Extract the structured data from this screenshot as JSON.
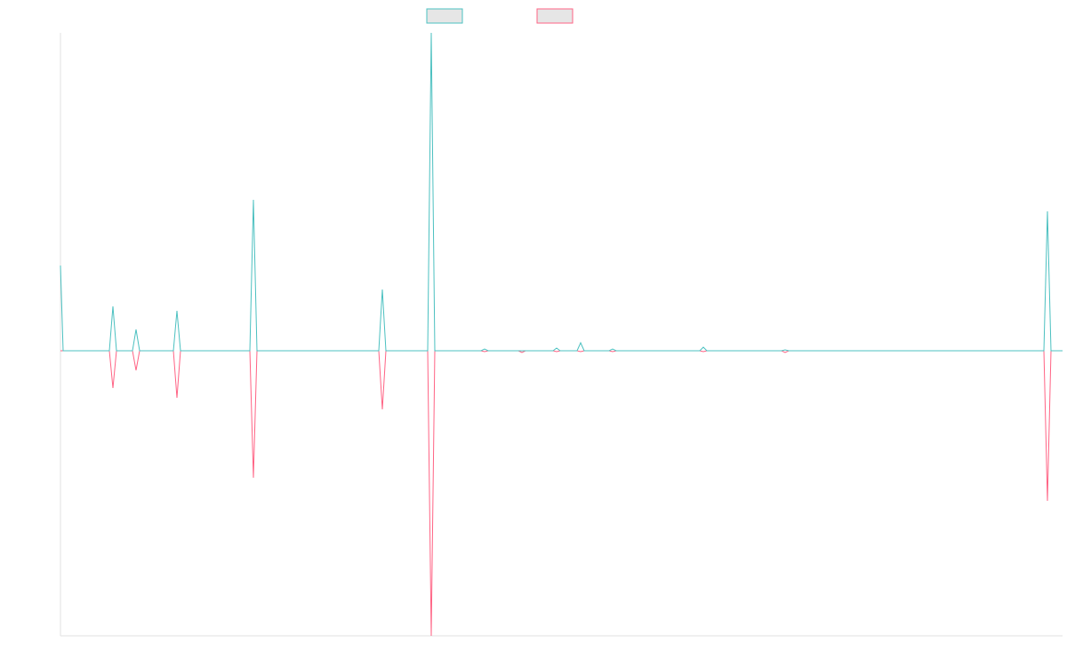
{
  "chart_data": {
    "type": "line",
    "x": [
      0,
      3,
      55,
      59,
      63,
      81,
      85,
      89,
      127,
      131,
      135,
      213,
      217,
      221,
      358,
      362,
      366,
      413,
      417,
      421,
      473,
      477,
      481,
      515,
      519,
      523,
      554,
      558,
      562,
      581,
      585,
      589,
      617,
      621,
      625,
      719,
      723,
      727,
      811,
      815,
      819,
      1106,
      1110,
      1114,
      1127
    ],
    "series": [
      {
        "color": "#4bc0c0",
        "values": [
          96,
          0,
          0,
          50,
          0,
          0,
          24,
          0,
          0,
          45,
          0,
          0,
          170,
          0,
          0,
          69,
          0,
          0,
          358,
          0,
          0,
          2,
          0,
          0,
          0,
          0,
          0,
          3,
          0,
          0,
          9,
          0,
          0,
          2,
          0,
          0,
          4,
          0,
          0,
          1,
          0,
          0,
          157,
          0,
          0
        ]
      },
      {
        "color": "#ff6384",
        "values": [
          0,
          0,
          0,
          -42,
          0,
          0,
          -22,
          0,
          0,
          -53,
          0,
          0,
          -143,
          0,
          0,
          -66,
          0,
          0,
          -321,
          0,
          0,
          -1,
          0,
          0,
          -2,
          0,
          0,
          -1,
          0,
          0,
          -1,
          0,
          0,
          -1,
          0,
          0,
          -1,
          0,
          0,
          -2,
          0,
          0,
          -169,
          0,
          0
        ]
      }
    ],
    "xlim": [
      0,
      1127
    ],
    "ylim": [
      -321,
      358
    ],
    "legend": "top"
  }
}
